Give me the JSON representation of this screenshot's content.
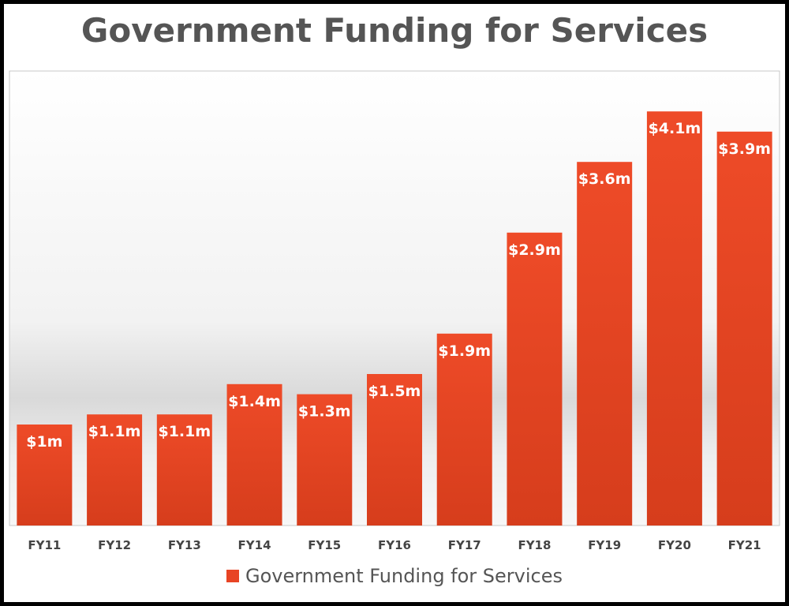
{
  "chart_data": {
    "type": "bar",
    "title": "Government Funding for Services",
    "categories": [
      "FY11",
      "FY12",
      "FY13",
      "FY14",
      "FY15",
      "FY16",
      "FY17",
      "FY18",
      "FY19",
      "FY20",
      "FY21"
    ],
    "series": [
      {
        "name": "Government Funding for Services",
        "values": [
          1.0,
          1.1,
          1.1,
          1.4,
          1.3,
          1.5,
          1.9,
          2.9,
          3.6,
          4.1,
          3.9
        ],
        "labels": [
          "$1m",
          "$1.1m",
          "$1.1m",
          "$1.4m",
          "$1.3m",
          "$1.5m",
          "$1.9m",
          "$2.9m",
          "$3.6m",
          "$4.1m",
          "$3.9m"
        ],
        "color": "#e84424"
      }
    ],
    "ylim": [
      0,
      4.3
    ],
    "grid": false,
    "legend": "bottom"
  },
  "colors": {
    "bar_top": "#ee4b28",
    "bar_bottom": "#d63d1c",
    "title": "#555555"
  }
}
